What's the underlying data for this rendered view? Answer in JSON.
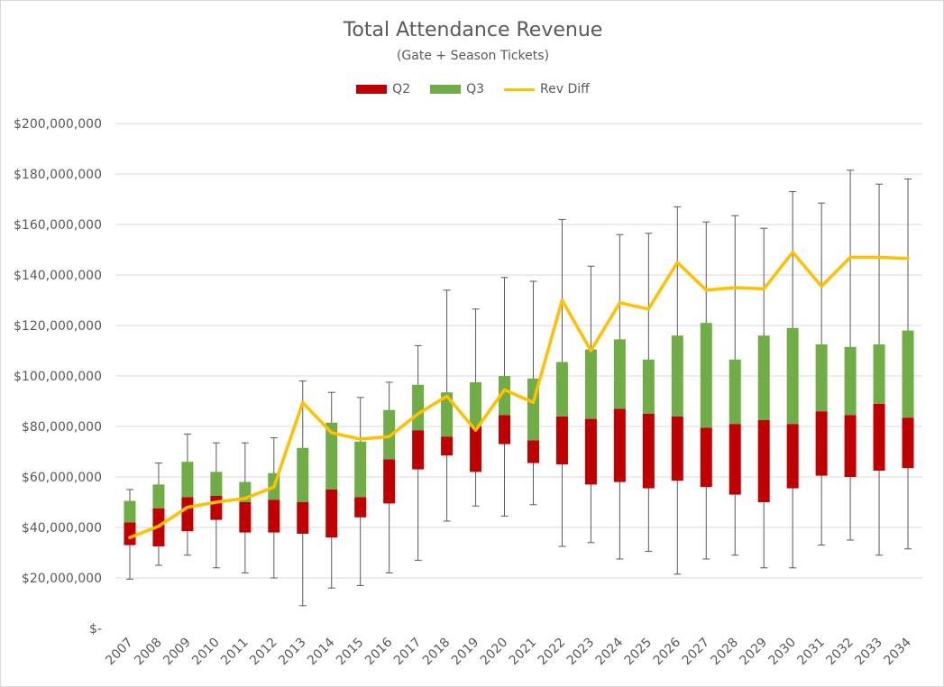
{
  "chart_data": {
    "type": "bar",
    "title": "Total Attendance Revenue",
    "subtitle": "(Gate + Season Tickets)",
    "xlabel": "",
    "ylabel": "",
    "ylim": [
      0,
      200000000
    ],
    "y_ticks": [
      0,
      20000000,
      40000000,
      60000000,
      80000000,
      100000000,
      120000000,
      140000000,
      160000000,
      180000000,
      200000000
    ],
    "y_tick_labels": [
      "$-",
      "$20,000,000",
      "$40,000,000",
      "$60,000,000",
      "$80,000,000",
      "$100,000,000",
      "$120,000,000",
      "$140,000,000",
      "$160,000,000",
      "$180,000,000",
      "$200,000,000"
    ],
    "grid": true,
    "legend_position": "top",
    "categories": [
      "2007",
      "2008",
      "2009",
      "2010",
      "2011",
      "2012",
      "2013",
      "2014",
      "2015",
      "2016",
      "2017",
      "2018",
      "2019",
      "2020",
      "2021",
      "2022",
      "2023",
      "2024",
      "2025",
      "2026",
      "2027",
      "2028",
      "2029",
      "2030",
      "2031",
      "2032",
      "2033",
      "2034"
    ],
    "series": [
      {
        "name": "Q2",
        "color": "#c00000",
        "q1": [
          33000000,
          32500000,
          38500000,
          43000000,
          38000000,
          38000000,
          37500000,
          36000000,
          44000000,
          49500000,
          63000000,
          68500000,
          62000000,
          73000000,
          65500000,
          65000000,
          57000000,
          58000000,
          55500000,
          58500000,
          56000000,
          53000000,
          50000000,
          55500000,
          60500000,
          60000000,
          62500000,
          63500000
        ],
        "median": [
          42000000,
          47500000,
          52000000,
          52500000,
          50000000,
          51000000,
          50000000,
          55000000,
          52000000,
          67000000,
          78500000,
          76000000,
          80000000,
          84500000,
          74500000,
          84000000,
          83000000,
          87000000,
          85000000,
          84000000,
          79500000,
          81000000,
          82500000,
          81000000,
          86000000,
          84500000,
          89000000,
          83500000
        ]
      },
      {
        "name": "Q3",
        "color": "#70ad47",
        "q3": [
          50500000,
          57000000,
          66000000,
          62000000,
          58000000,
          61500000,
          71500000,
          81500000,
          74000000,
          86500000,
          96500000,
          93500000,
          97500000,
          100000000,
          99000000,
          105500000,
          110500000,
          114500000,
          106500000,
          116000000,
          121000000,
          106500000,
          116000000,
          119000000,
          112500000,
          111500000,
          112500000,
          118000000
        ]
      },
      {
        "name": "Rev Diff",
        "color": "#ffc000",
        "values": [
          36000000,
          40500000,
          48000000,
          50000000,
          51500000,
          56000000,
          89500000,
          77500000,
          75000000,
          76000000,
          85000000,
          92000000,
          78500000,
          94500000,
          89500000,
          130000000,
          110000000,
          129000000,
          126500000,
          145000000,
          134000000,
          135000000,
          134500000,
          149000000,
          135500000,
          147000000,
          147000000,
          146500000
        ]
      }
    ],
    "whiskers": {
      "min": [
        19500000,
        25000000,
        29000000,
        24000000,
        22000000,
        20000000,
        9000000,
        16000000,
        17000000,
        22000000,
        27000000,
        42500000,
        48500000,
        44500000,
        49000000,
        32500000,
        34000000,
        27500000,
        30500000,
        21500000,
        27500000,
        29000000,
        24000000,
        24000000,
        33000000,
        35000000,
        29000000,
        31500000
      ],
      "max": [
        55000000,
        65500000,
        77000000,
        73500000,
        73500000,
        75500000,
        98000000,
        93500000,
        91500000,
        97500000,
        112000000,
        134000000,
        126500000,
        139000000,
        137500000,
        162000000,
        143500000,
        156000000,
        156500000,
        167000000,
        161000000,
        163500000,
        158500000,
        173000000,
        168500000,
        181500000,
        176000000,
        178000000
      ],
      "color": "#595959"
    },
    "gridline_color": "#d9d9d9"
  }
}
